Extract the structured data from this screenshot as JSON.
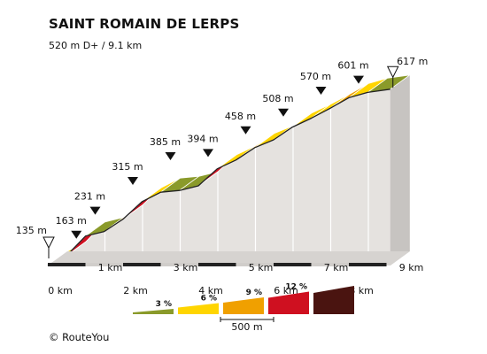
{
  "header": {
    "title": "SAINT ROMAIN DE LERPS",
    "subtitle": "520 m D+ / 9.1 km"
  },
  "footer": {
    "copyright": "© RouteYou"
  },
  "chart_data": {
    "type": "area",
    "title": "SAINT ROMAIN DE LERPS",
    "subtitle": "520 m D+ / 9.1 km",
    "xlabel": "",
    "ylabel": "",
    "x_unit": "km",
    "y_unit": "m",
    "xlim": [
      0,
      9.1
    ],
    "ylim": [
      135,
      617
    ],
    "x_ticks": [
      "0 km",
      "1 km",
      "2 km",
      "3 km",
      "4 km",
      "5 km",
      "6 km",
      "7 km",
      "8 km",
      "9 km"
    ],
    "segments": [
      {
        "km_start": 0.0,
        "km_end": 0.5,
        "grade_percent": 5.6
      },
      {
        "km_start": 0.5,
        "km_end": 1.0,
        "grade_percent": 11.0
      },
      {
        "km_start": 1.0,
        "km_end": 1.5,
        "grade_percent": 2.6
      },
      {
        "km_start": 1.5,
        "km_end": 2.0,
        "grade_percent": 7.0
      },
      {
        "km_start": 2.0,
        "km_end": 2.5,
        "grade_percent": 9.8
      },
      {
        "km_start": 2.5,
        "km_end": 3.0,
        "grade_percent": 5.4
      },
      {
        "km_start": 3.0,
        "km_end": 3.5,
        "grade_percent": 1.0
      },
      {
        "km_start": 3.5,
        "km_end": 4.0,
        "grade_percent": 2.6
      },
      {
        "km_start": 4.0,
        "km_end": 4.5,
        "grade_percent": 9.6
      },
      {
        "km_start": 4.5,
        "km_end": 5.0,
        "grade_percent": 5.0
      },
      {
        "km_start": 5.0,
        "km_end": 5.5,
        "grade_percent": 7.0
      },
      {
        "km_start": 5.5,
        "km_end": 6.0,
        "grade_percent": 4.4
      },
      {
        "km_start": 6.0,
        "km_end": 6.5,
        "grade_percent": 7.2
      },
      {
        "km_start": 6.5,
        "km_end": 7.0,
        "grade_percent": 5.0
      },
      {
        "km_start": 7.0,
        "km_end": 7.5,
        "grade_percent": 5.6
      },
      {
        "km_start": 7.5,
        "km_end": 8.0,
        "grade_percent": 6.0
      },
      {
        "km_start": 8.0,
        "km_end": 8.5,
        "grade_percent": 3.0
      },
      {
        "km_start": 8.5,
        "km_end": 9.1,
        "grade_percent": 1.5
      }
    ],
    "labelled_points": [
      {
        "x": 0.0,
        "y": 135,
        "label": "135 m",
        "marker": "start"
      },
      {
        "x": 0.5,
        "y": 163,
        "label": "163 m",
        "marker": "point"
      },
      {
        "x": 1.0,
        "y": 231,
        "label": "231 m",
        "marker": "point"
      },
      {
        "x": 2.0,
        "y": 315,
        "label": "315 m",
        "marker": "point"
      },
      {
        "x": 3.0,
        "y": 385,
        "label": "385 m",
        "marker": "point"
      },
      {
        "x": 4.0,
        "y": 394,
        "label": "394 m",
        "marker": "point"
      },
      {
        "x": 5.0,
        "y": 458,
        "label": "458 m",
        "marker": "point"
      },
      {
        "x": 6.0,
        "y": 508,
        "label": "508 m",
        "marker": "point"
      },
      {
        "x": 7.0,
        "y": 570,
        "label": "570 m",
        "marker": "point"
      },
      {
        "x": 8.0,
        "y": 601,
        "label": "601 m",
        "marker": "point"
      },
      {
        "x": 9.1,
        "y": 617,
        "label": "617 m",
        "marker": "summit"
      }
    ],
    "legend": {
      "placement": "bottom",
      "items": [
        {
          "label": "3 %",
          "color": "#8a9a2a"
        },
        {
          "label": "6 %",
          "color": "#ffd500"
        },
        {
          "label": "9 %",
          "color": "#f0a000"
        },
        {
          "label": "12 %",
          "color": "#cf1020"
        },
        {
          "label": "",
          "color": "#4a1410"
        }
      ]
    },
    "scale_bar_label": "500 m",
    "colors": {
      "lt3": "#8a9a2a",
      "lt6": "#ffd500",
      "lt9": "#f0a000",
      "lt12": "#cf1020",
      "ge12": "#4a1410",
      "wall": "#e5e2df",
      "end": "#c7c4c1",
      "base": "#d6d3d0"
    }
  }
}
